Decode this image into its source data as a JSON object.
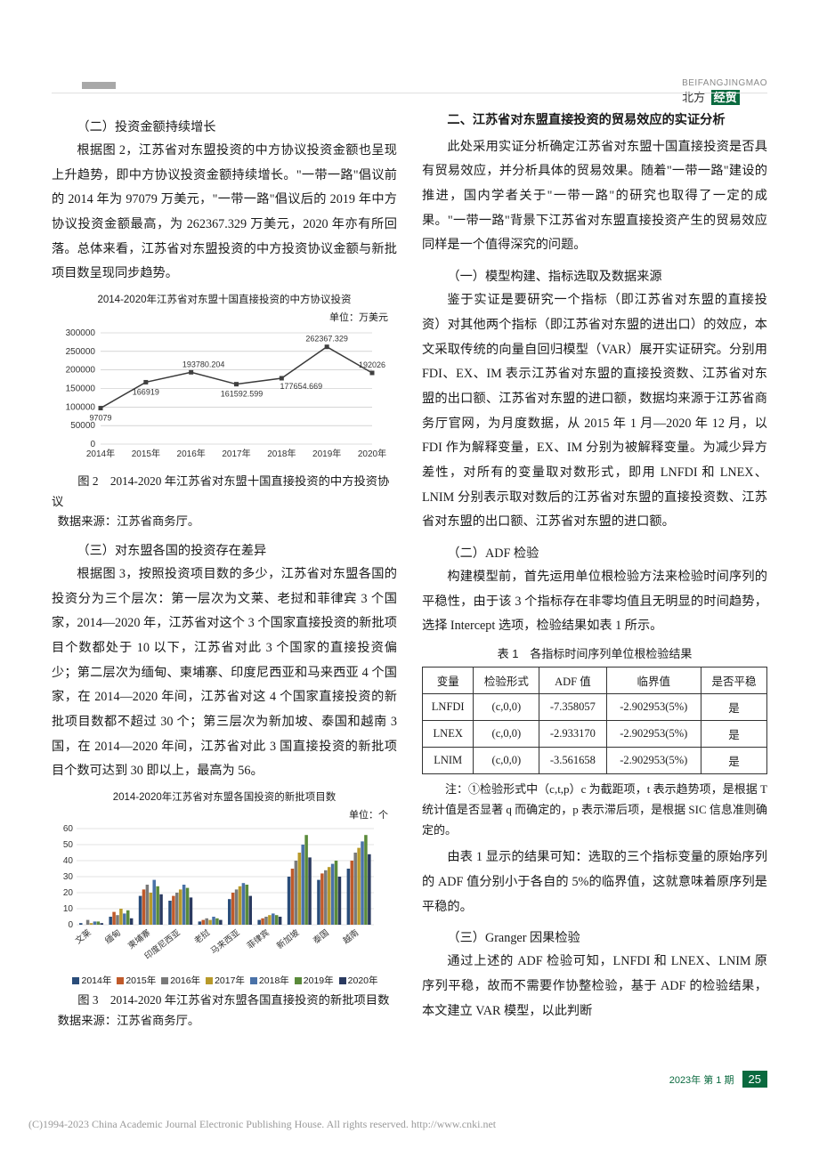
{
  "header": {
    "pinyin": "BEIFANGJINGMAO",
    "journal_prefix": "北方",
    "journal_badge": "经贸"
  },
  "left": {
    "sec1_title": "（二）投资金额持续增长",
    "sec1_p1": "根据图 2，江苏省对东盟投资的中方协议投资金额也呈现上升趋势，即中方协议投资金额持续增长。\"一带一路\"倡议前的 2014 年为 97079 万美元，\"一带一路\"倡议后的 2019 年中方协议投资金额最高，为 262367.329 万美元，2020 年亦有所回落。总体来看，江苏省对东盟投资的中方投资协议金额与新批项目数呈现同步趋势。",
    "chart2": {
      "type": "line",
      "title": "2014-2020年江苏省对东盟十国直接投资的中方协议投资",
      "unit": "单位：万美元",
      "categories": [
        "2014年",
        "2015年",
        "2016年",
        "2017年",
        "2018年",
        "2019年",
        "2020年"
      ],
      "values": [
        97079,
        166919,
        193780.204,
        161592.599,
        177654.669,
        262367.329,
        192026
      ],
      "display_labels": [
        "97079",
        "166919",
        "193780.204",
        "161592.599",
        "177654.669",
        "262367.329",
        "192026"
      ],
      "ylim": [
        0,
        300000
      ],
      "ytick_step": 50000,
      "yticks": [
        "0",
        "50000",
        "100000",
        "150000",
        "200000",
        "250000",
        "300000"
      ],
      "line_color": "#3a3a3a",
      "marker_color": "#404040",
      "grid_color": "#bdbdbd",
      "background_color": "#ffffff",
      "tick_font_size": 10,
      "label_font_size": 9
    },
    "fig2_caption": "图 2　2014-2020 年江苏省对东盟十国直接投资的中方投资协议",
    "fig2_source": "数据来源：江苏省商务厅。",
    "sec2_title": "（三）对东盟各国的投资存在差异",
    "sec2_p1": "根据图 3，按照投资项目数的多少，江苏省对东盟各国的投资分为三个层次：第一层次为文莱、老挝和菲律宾 3 个国家，2014—2020 年，江苏省对这个 3 个国家直接投资的新批项目个数都处于 10 以下，江苏省对此 3 个国家的直接投资偏少；第二层次为缅甸、柬埔寨、印度尼西亚和马来西亚 4 个国家，在 2014—2020 年间，江苏省对这 4 个国家直接投资的新批项目数都不超过 30 个；第三层次为新加坡、泰国和越南 3 国，在 2014—2020 年间，江苏省对此 3 国直接投资的新批项目个数可达到 30 即以上，最高为 56。",
    "chart3": {
      "type": "grouped-bar",
      "title": "2014-2020年江苏省对东盟各国投资的新批项目数",
      "unit": "单位：个",
      "countries": [
        "文莱",
        "缅甸",
        "柬埔寨",
        "印度尼西亚",
        "老挝",
        "马来西亚",
        "菲律宾",
        "新加坡",
        "泰国",
        "越南"
      ],
      "years": [
        "2014年",
        "2015年",
        "2016年",
        "2017年",
        "2018年",
        "2019年",
        "2020年"
      ],
      "values": [
        [
          1,
          0,
          3,
          1,
          2,
          2,
          1
        ],
        [
          5,
          8,
          6,
          10,
          7,
          9,
          4
        ],
        [
          18,
          22,
          25,
          20,
          28,
          24,
          19
        ],
        [
          15,
          18,
          20,
          22,
          25,
          23,
          17
        ],
        [
          2,
          3,
          4,
          3,
          5,
          4,
          3
        ],
        [
          16,
          20,
          22,
          24,
          26,
          25,
          18
        ],
        [
          3,
          4,
          5,
          6,
          7,
          6,
          5
        ],
        [
          30,
          35,
          40,
          45,
          50,
          56,
          42
        ],
        [
          28,
          32,
          34,
          36,
          38,
          40,
          30
        ],
        [
          35,
          40,
          45,
          48,
          52,
          56,
          44
        ]
      ],
      "colors": [
        "#2a4d7a",
        "#c05a2a",
        "#7a7a7a",
        "#b89a2a",
        "#4a72a8",
        "#5a8a3a",
        "#2a3a60"
      ],
      "ylim": [
        0,
        60
      ],
      "ytick_step": 10,
      "yticks": [
        "0",
        "10",
        "20",
        "30",
        "40",
        "50",
        "60"
      ],
      "grid_color": "#c8c8c8",
      "tick_font_size": 10
    },
    "fig3_caption": "图 3　2014-2020 年江苏省对东盟各国直接投资的新批项目数",
    "fig3_source": "数据来源：江苏省商务厅。"
  },
  "right": {
    "sec_main_title": "二、江苏省对东盟直接投资的贸易效应的实证分析",
    "intro_p1": "此处采用实证分析确定江苏省对东盟十国直接投资是否具有贸易效应，并分析具体的贸易效果。随着\"一带一路\"建设的推进，国内学者关于\"一带一路\"的研究也取得了一定的成果。\"一带一路\"背景下江苏省对东盟直接投资产生的贸易效应同样是一个值得深究的问题。",
    "sec1_title": "（一）模型构建、指标选取及数据来源",
    "sec1_p1": "鉴于实证是要研究一个指标（即江苏省对东盟的直接投资）对其他两个指标（即江苏省对东盟的进出口）的效应，本文采取传统的向量自回归模型（VAR）展开实证研究。分别用 FDI、EX、IM 表示江苏省对东盟的直接投资数、江苏省对东盟的出口额、江苏省对东盟的进口额，数据均来源于江苏省商务厅官网，为月度数据，从 2015 年 1 月—2020 年 12 月，以 FDI 作为解释变量，EX、IM 分别为被解释变量。为减少异方差性，对所有的变量取对数形式，即用 LNFDI 和 LNEX、LNIM 分别表示取对数后的江苏省对东盟的直接投资数、江苏省对东盟的出口额、江苏省对东盟的进口额。",
    "sec2_title": "（二）ADF 检验",
    "sec2_p1": "构建模型前，首先运用单位根检验方法来检验时间序列的平稳性，由于该 3 个指标存在非零均值且无明显的时间趋势，选择 Intercept 选项，检验结果如表 1 所示。",
    "table1": {
      "title": "表 1　各指标时间序列单位根检验结果",
      "columns": [
        "变量",
        "检验形式",
        "ADF 值",
        "临界值",
        "是否平稳"
      ],
      "rows": [
        [
          "LNFDI",
          "(c,0,0)",
          "-7.358057",
          "-2.902953(5%)",
          "是"
        ],
        [
          "LNEX",
          "(c,0,0)",
          "-2.933170",
          "-2.902953(5%)",
          "是"
        ],
        [
          "LNIM",
          "(c,0,0)",
          "-3.561658",
          "-2.902953(5%)",
          "是"
        ]
      ],
      "note": "注：①检验形式中（c,t,p）c 为截距项，t 表示趋势项，是根据 T 统计值是否显著 q 而确定的，p 表示滞后项，是根据 SIC 信息准则确定的。"
    },
    "sec2_p2": "由表 1 显示的结果可知：选取的三个指标变量的原始序列的 ADF 值分别小于各自的 5%的临界值，这就意味着原序列是平稳的。",
    "sec3_title": "（三）Granger 因果检验",
    "sec3_p1": "通过上述的 ADF 检验可知，LNFDI 和 LNEX、LNIM 原序列平稳，故而不需要作协整检验，基于 ADF 的检验结果，本文建立 VAR 模型，以此判断"
  },
  "footer": {
    "issue": "2023年 第 1 期",
    "page": "25",
    "copyright": "(C)1994-2023 China Academic Journal Electronic Publishing House. All rights reserved.    http://www.cnki.net"
  }
}
